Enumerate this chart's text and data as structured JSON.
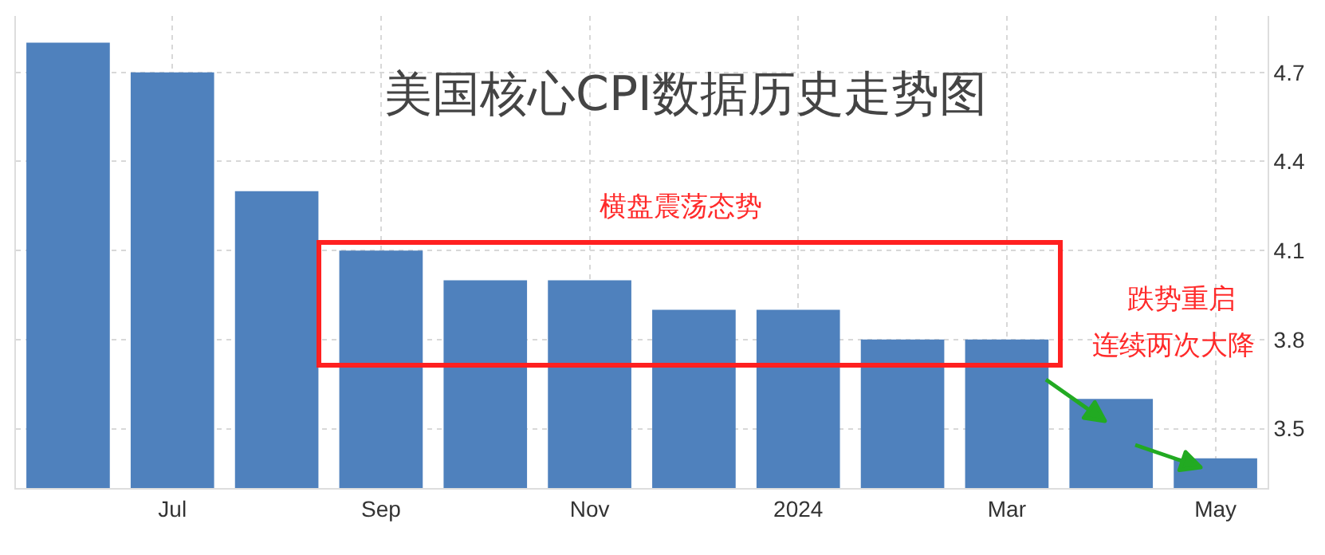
{
  "chart_data": {
    "type": "bar",
    "title": "美国核心CPI数据历史走势图",
    "categories": [
      null,
      "Jul",
      null,
      "Sep",
      null,
      "Nov",
      null,
      "2024",
      null,
      "Mar",
      null,
      "May"
    ],
    "values": [
      4.8,
      4.7,
      4.3,
      4.1,
      4.0,
      4.0,
      3.9,
      3.9,
      3.8,
      3.8,
      3.6,
      3.4
    ],
    "color": "#4f81bd",
    "ylim": [
      3.3,
      4.89
    ],
    "yticks": [
      3.5,
      3.8,
      4.1,
      4.4,
      4.7
    ],
    "grid": true,
    "annotations": [
      "横盘震荡态势",
      "跌势重启",
      "连续两次大降"
    ]
  }
}
